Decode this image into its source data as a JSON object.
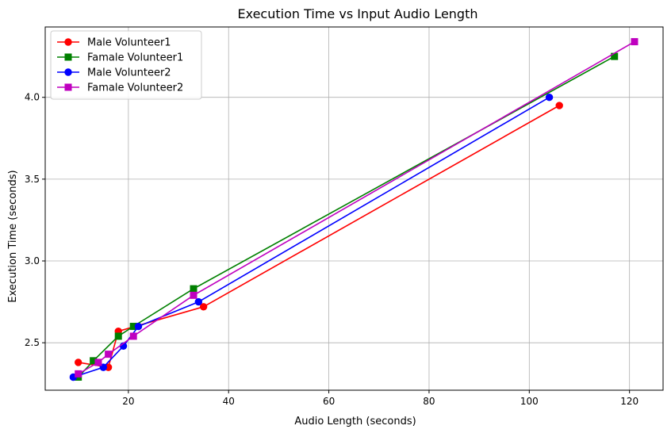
{
  "chart_data": {
    "type": "line",
    "title": "Execution Time vs Input Audio Length",
    "xlabel": "Audio Length (seconds)",
    "ylabel": "Execution Time (seconds)",
    "xlim": [
      3.4,
      126.7
    ],
    "ylim": [
      2.21,
      4.43
    ],
    "xticks": [
      20,
      40,
      60,
      80,
      100,
      120
    ],
    "yticks": [
      2.5,
      3.0,
      3.5,
      4.0
    ],
    "xtick_labels": [
      "20",
      "40",
      "60",
      "80",
      "100",
      "120"
    ],
    "ytick_labels": [
      "2.5",
      "3.0",
      "3.5",
      "4.0"
    ],
    "grid": true,
    "legend_position": "top-left",
    "series": [
      {
        "name": "Male Volunteer1",
        "color": "#ff0000",
        "marker": "circle",
        "x": [
          10,
          16,
          18,
          35,
          106
        ],
        "y": [
          2.38,
          2.35,
          2.57,
          2.72,
          3.95
        ]
      },
      {
        "name": "Famale Volunteer1",
        "color": "#008000",
        "marker": "square",
        "x": [
          10,
          13,
          18,
          21,
          33,
          117
        ],
        "y": [
          2.29,
          2.39,
          2.54,
          2.6,
          2.83,
          4.25
        ]
      },
      {
        "name": "Male Volunteer2",
        "color": "#0000ff",
        "marker": "circle",
        "x": [
          9,
          15,
          19,
          22,
          34,
          104
        ],
        "y": [
          2.29,
          2.35,
          2.48,
          2.6,
          2.75,
          4.0
        ]
      },
      {
        "name": "Famale Volunteer2",
        "color": "#bf00bf",
        "marker": "square",
        "x": [
          10,
          14,
          16,
          21,
          33,
          121
        ],
        "y": [
          2.31,
          2.38,
          2.43,
          2.54,
          2.79,
          4.34
        ]
      }
    ]
  }
}
